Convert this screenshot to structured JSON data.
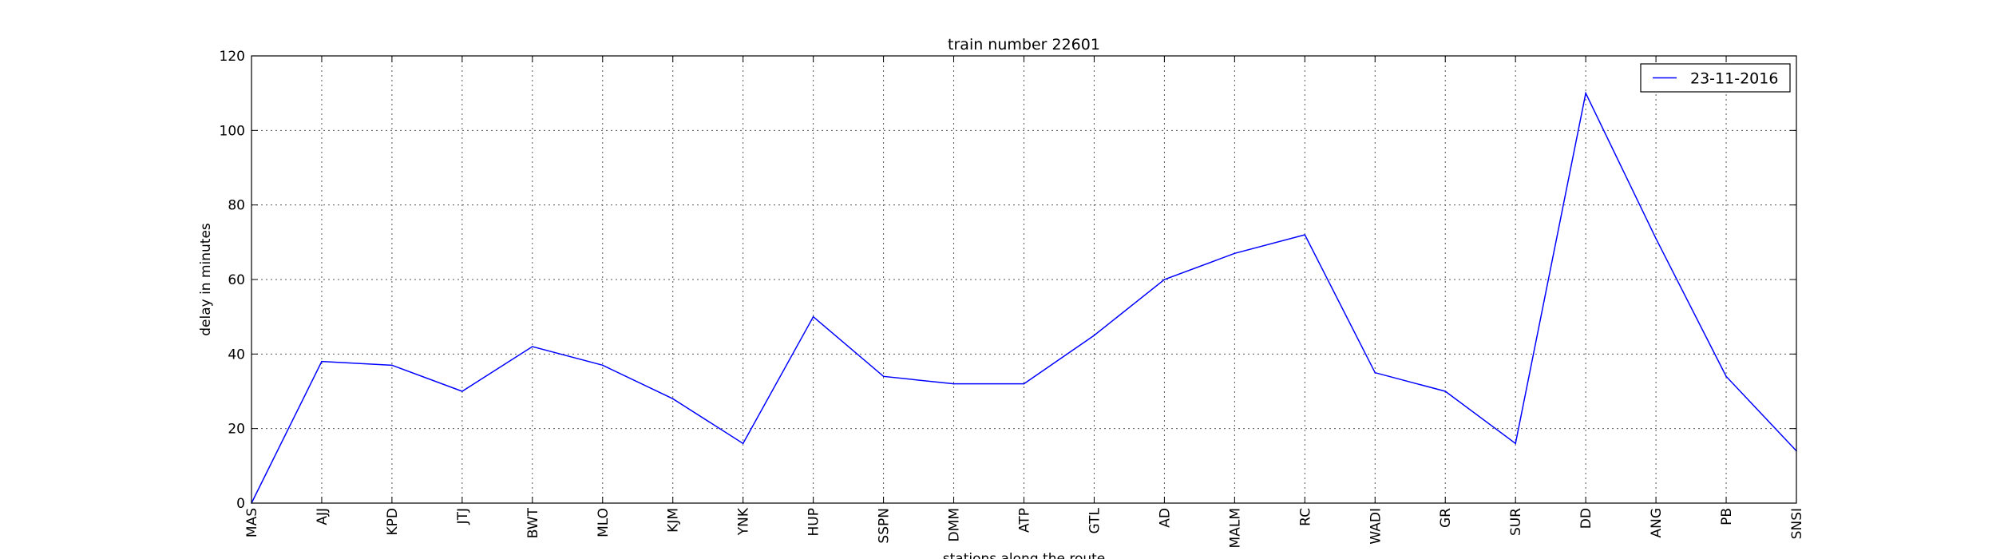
{
  "chart_data": {
    "type": "line",
    "title": "train number 22601",
    "xlabel": "stations along the route",
    "ylabel": "delay in minutes",
    "categories": [
      "MAS",
      "AJJ",
      "KPD",
      "JTJ",
      "BWT",
      "MLO",
      "KJM",
      "YNK",
      "HUP",
      "SSPN",
      "DMM",
      "ATP",
      "GTL",
      "AD",
      "MALM",
      "RC",
      "WADI",
      "GR",
      "SUR",
      "DD",
      "ANG",
      "PB",
      "SNSI"
    ],
    "series": [
      {
        "name": "23-11-2016",
        "color": "#0000ff",
        "values": [
          0,
          38,
          37,
          30,
          42,
          37,
          28,
          16,
          50,
          34,
          32,
          32,
          45,
          60,
          67,
          72,
          35,
          30,
          16,
          110,
          71,
          34,
          14
        ]
      }
    ],
    "ylim": [
      0,
      120
    ],
    "yticks": [
      0,
      20,
      40,
      60,
      80,
      100,
      120
    ],
    "grid": true,
    "legend_position": "top-right"
  }
}
